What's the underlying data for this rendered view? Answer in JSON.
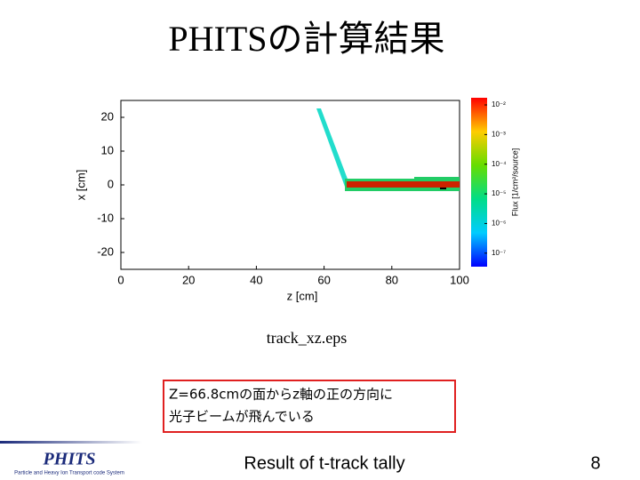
{
  "title": "PHITSの計算結果",
  "chart_data": {
    "type": "track",
    "xlabel": "z [cm]",
    "ylabel": "x [cm]",
    "xlim": [
      0,
      100
    ],
    "ylim": [
      -25,
      25
    ],
    "xticks": [
      0,
      20,
      40,
      60,
      80,
      100
    ],
    "yticks": [
      -20,
      -10,
      0,
      10,
      20
    ],
    "colorbar": {
      "label": "Flux [1/cm²/source]",
      "log": true,
      "lim": [
        3.5e-08,
        0.0174
      ],
      "ticks": [
        {
          "value": 0.01,
          "label": "10⁻²"
        },
        {
          "value": 0.001,
          "label": "10⁻³"
        },
        {
          "value": 0.0001,
          "label": "10⁻⁴"
        },
        {
          "value": 1e-05,
          "label": "10⁻⁵"
        },
        {
          "value": 1e-06,
          "label": "10⁻⁶"
        },
        {
          "value": 1e-07,
          "label": "10⁻⁷"
        }
      ]
    }
  },
  "caption": "track_xz.eps",
  "note": [
    "Z=66.8cmの面からz軸の正の方向に",
    "光子ビームが飛んでいる"
  ],
  "footer": {
    "logo": "PHITS",
    "logo_subtitle": "Particle and Heavy Ion Transport code System",
    "text": "Result of t-track tally",
    "page": "8"
  }
}
